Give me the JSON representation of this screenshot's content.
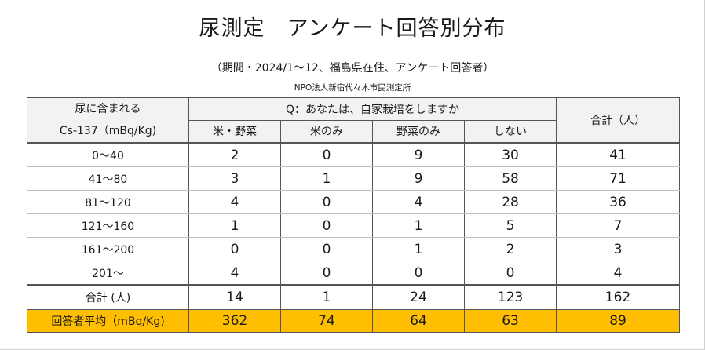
{
  "title": "尿測定　アンケート回答別分布",
  "subtitle": "（期間・2024/1～12、福島県在住、アンケート回答者）",
  "org": "NPO法人新宿代々木市民測定所",
  "table": {
    "header_label_line1": "尿に含まれる",
    "header_label_line2": "Cs-137（mBq/Kg)",
    "question": "Q：あなたは、自家栽培をしますか",
    "columns": [
      "米・野菜",
      "米のみ",
      "野菜のみ",
      "しない"
    ],
    "total_header": "合計（人）",
    "rows": [
      {
        "label": "0～40",
        "values": [
          "2",
          "0",
          "9",
          "30"
        ],
        "total": "41"
      },
      {
        "label": "41～80",
        "values": [
          "3",
          "1",
          "9",
          "58"
        ],
        "total": "71"
      },
      {
        "label": "81～120",
        "values": [
          "4",
          "0",
          "4",
          "28"
        ],
        "total": "36"
      },
      {
        "label": "121～160",
        "values": [
          "1",
          "0",
          "1",
          "5"
        ],
        "total": "7"
      },
      {
        "label": "161～200",
        "values": [
          "0",
          "0",
          "1",
          "2"
        ],
        "total": "3"
      },
      {
        "label": "201～",
        "values": [
          "4",
          "0",
          "0",
          "0"
        ],
        "total": "4"
      }
    ],
    "totals_row": {
      "label": "合計 (人)",
      "values": [
        "14",
        "1",
        "24",
        "123"
      ],
      "total": "162"
    },
    "average_row": {
      "label": "回答者平均（mBq/Kg)",
      "values": [
        "362",
        "74",
        "64",
        "63"
      ],
      "total": "89"
    }
  },
  "colors": {
    "highlight": "#ffbf00",
    "header_bg": "#f2f2f2"
  }
}
